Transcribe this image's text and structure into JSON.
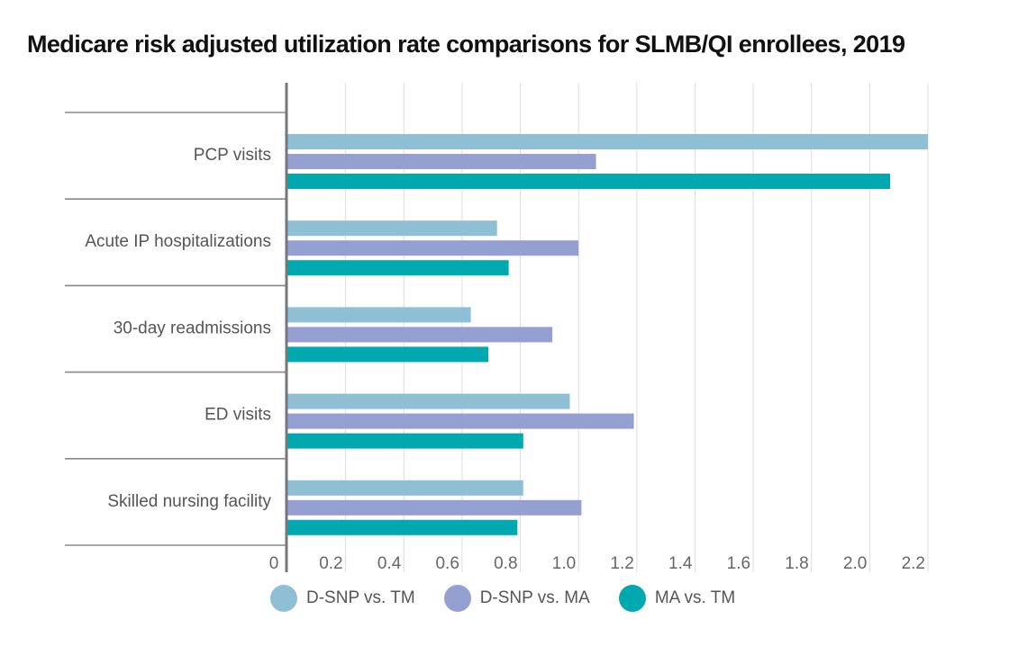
{
  "chart_data": {
    "type": "bar",
    "orientation": "horizontal",
    "title": "Medicare risk adjusted utilization rate comparisons for SLMB/QI enrollees, 2019",
    "categories": [
      "PCP visits",
      "Acute IP hospitalizations",
      "30-day readmissions",
      "ED visits",
      "Skilled nursing facility"
    ],
    "series": [
      {
        "name": "D-SNP vs. TM",
        "color": "#8fbfd4",
        "values": [
          2.2,
          0.72,
          0.63,
          0.97,
          0.81
        ]
      },
      {
        "name": "D-SNP vs. MA",
        "color": "#959fd1",
        "values": [
          1.06,
          1.0,
          0.91,
          1.19,
          1.01
        ]
      },
      {
        "name": "MA vs. TM",
        "color": "#00a8b0",
        "values": [
          2.07,
          0.76,
          0.69,
          0.81,
          0.79
        ]
      }
    ],
    "xlim": [
      0,
      2.2
    ],
    "xticks": [
      "0",
      "0.2",
      "0.4",
      "0.6",
      "0.8",
      "1.0",
      "1.2",
      "1.4",
      "1.6",
      "1.8",
      "2.0",
      "2.2"
    ],
    "xlabel": "",
    "ylabel": "",
    "grid": true,
    "legend_position": "bottom"
  }
}
